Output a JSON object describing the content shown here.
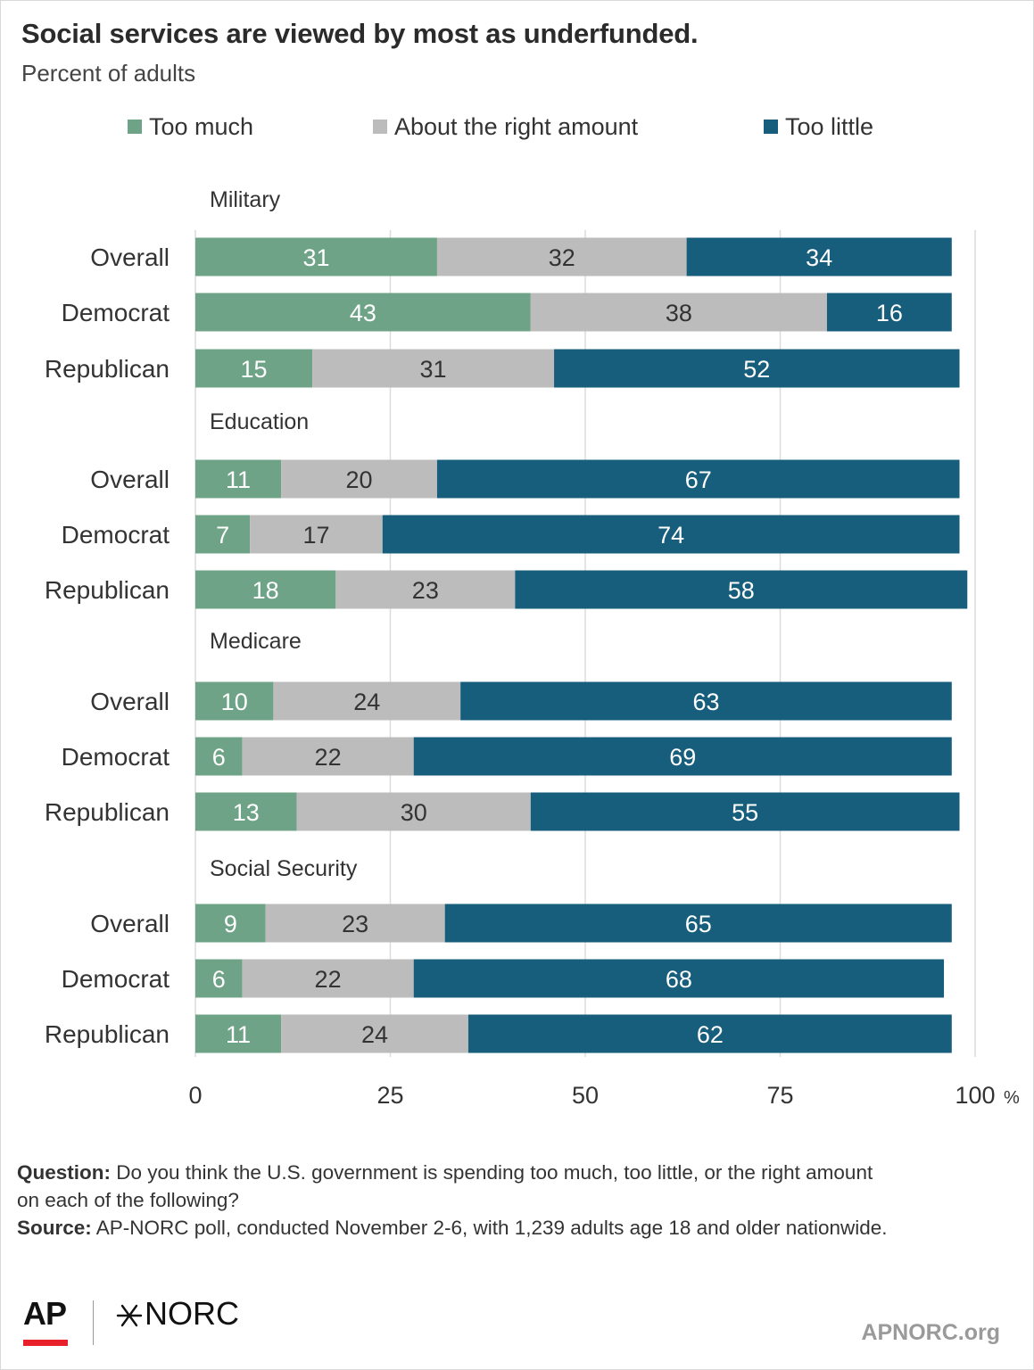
{
  "header": {
    "title": "Social services are viewed by most as underfunded.",
    "subtitle": "Percent of adults"
  },
  "footer": {
    "question_label": "Question:",
    "question_text_1": " Do you think the U.S. government is spending too much, too little, or the right amount",
    "question_text_2": "on each of the following?",
    "source_label": "Source:",
    "source_text": " AP-NORC poll, conducted November 2-6, with 1,239 adults age 18 and older nationwide."
  },
  "branding": {
    "ap": "AP",
    "norc": "NORC",
    "site": "APNORC.org"
  },
  "colors": {
    "too_much": "#6fa387",
    "about_right": "#bcbcbc",
    "too_little": "#175e7d",
    "grid": "#dcdcdc"
  },
  "chart_data": {
    "type": "bar",
    "orientation": "horizontal",
    "stacked": true,
    "title": "Social services are viewed by most as underfunded.",
    "subtitle": "Percent of adults",
    "xlim": [
      0,
      100
    ],
    "x_ticks": [
      "0",
      "25",
      "50",
      "75",
      "100"
    ],
    "x_unit": "%",
    "grid": true,
    "legend_position": "top",
    "legend": [
      "Too much",
      "About the right amount",
      "Too little"
    ],
    "groups": [
      {
        "name": "Military",
        "rows": [
          {
            "label": "Overall",
            "values": [
              31,
              32,
              34
            ]
          },
          {
            "label": "Democrat",
            "values": [
              43,
              38,
              16
            ]
          },
          {
            "label": "Republican",
            "values": [
              15,
              31,
              52
            ]
          }
        ]
      },
      {
        "name": "Education",
        "rows": [
          {
            "label": "Overall",
            "values": [
              11,
              20,
              67
            ]
          },
          {
            "label": "Democrat",
            "values": [
              7,
              17,
              74
            ]
          },
          {
            "label": "Republican",
            "values": [
              18,
              23,
              58
            ]
          }
        ]
      },
      {
        "name": "Medicare",
        "rows": [
          {
            "label": "Overall",
            "values": [
              10,
              24,
              63
            ]
          },
          {
            "label": "Democrat",
            "values": [
              6,
              22,
              69
            ]
          },
          {
            "label": "Republican",
            "values": [
              13,
              30,
              55
            ]
          }
        ]
      },
      {
        "name": "Social Security",
        "rows": [
          {
            "label": "Overall",
            "values": [
              9,
              23,
              65
            ]
          },
          {
            "label": "Democrat",
            "values": [
              6,
              22,
              68
            ]
          },
          {
            "label": "Republican",
            "values": [
              11,
              24,
              62
            ]
          }
        ]
      }
    ]
  }
}
